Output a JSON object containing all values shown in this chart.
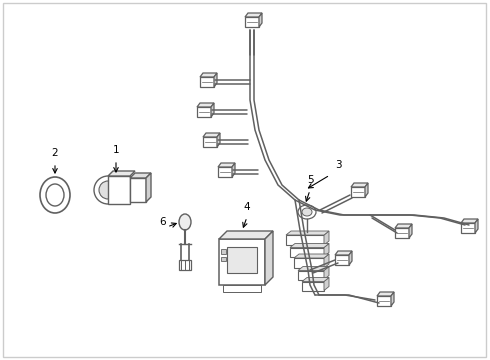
{
  "background_color": "#ffffff",
  "line_color": "#606060",
  "label_color": "#000000",
  "figsize": [
    4.9,
    3.6
  ],
  "dpi": 100,
  "border_color": "#cccccc"
}
